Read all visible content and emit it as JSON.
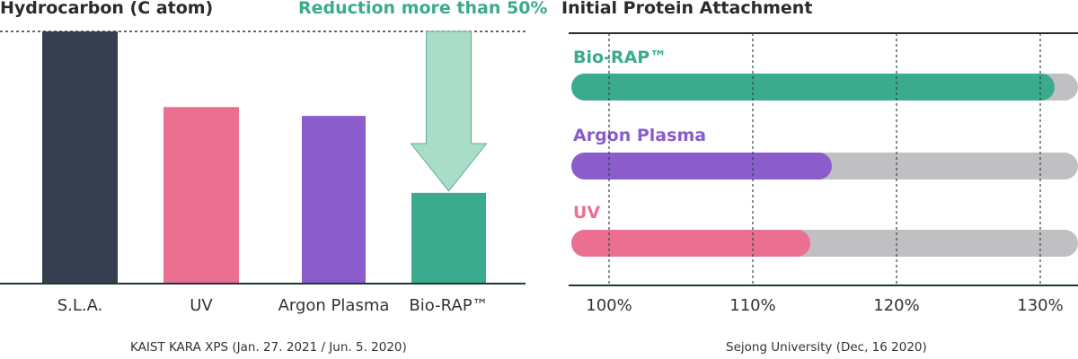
{
  "chart_data": [
    {
      "type": "bar",
      "title": "Hydrocarbon (C atom)",
      "annotation": "Reduction more than 50%",
      "categories": [
        "S.L.A.",
        "UV",
        "Argon Plasma",
        "Bio-RAP™"
      ],
      "values": [
        100,
        70,
        66.5,
        36
      ],
      "colors": [
        "#353f50",
        "#ea6f90",
        "#8a5ccc",
        "#3aab8d"
      ],
      "reference_line": 100,
      "ylim": [
        0,
        100
      ],
      "grid": false,
      "source": "KAIST KARA XPS (Jan. 27. 2021 / Jun. 5. 2020)"
    },
    {
      "type": "bar",
      "orientation": "horizontal",
      "title": "Initial Protein Attachment",
      "series": [
        {
          "name": "Bio-RAP™",
          "value": 131,
          "color": "#3aab8d"
        },
        {
          "name": "Argon Plasma",
          "value": 115.5,
          "color": "#8a5ccc"
        },
        {
          "name": "UV",
          "value": 114,
          "color": "#ea6f90"
        }
      ],
      "xticks": [
        "100%",
        "110%",
        "120%",
        "130%"
      ],
      "xtick_values": [
        100,
        110,
        120,
        130
      ],
      "xlim": [
        98,
        133
      ],
      "grid": true,
      "track_color": "#c0c0c2",
      "source": "Sejong University (Dec, 16 2020)"
    }
  ],
  "accent_color": "#3aab8d",
  "arrow_color": "#a9ddc7"
}
